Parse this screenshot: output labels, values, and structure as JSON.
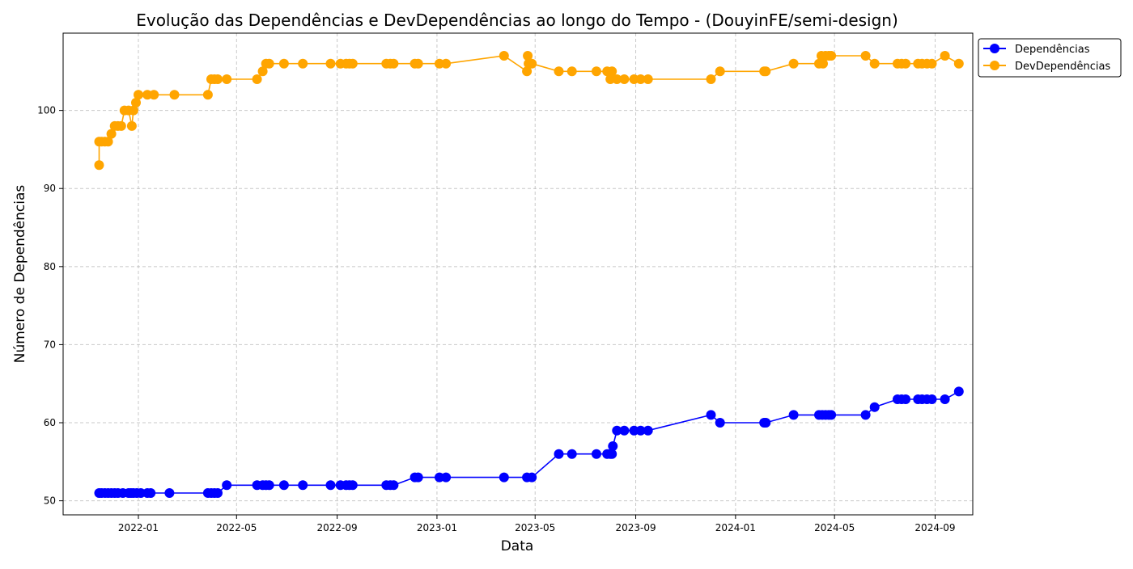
{
  "chart_data": {
    "type": "line",
    "title": "Evolução das Dependências e DevDependências ao longo do Tempo - (DouyinFE/semi-design)",
    "xlabel": "Data",
    "ylabel": "Número de Dependências",
    "x_ticks": [
      "2022-01",
      "2022-05",
      "2022-09",
      "2023-01",
      "2023-05",
      "2023-09",
      "2024-01",
      "2024-05",
      "2024-09"
    ],
    "y_ticks": [
      50,
      60,
      70,
      80,
      90,
      100
    ],
    "xlim": [
      "2021-10-01",
      "2024-10-17"
    ],
    "ylim": [
      48.2,
      109.9
    ],
    "grid": true,
    "legend_position": "outside-top-right",
    "series": [
      {
        "name": "Dependências",
        "color": "#0000ff",
        "points": [
          [
            "2021-11-14",
            51
          ],
          [
            "2021-11-17",
            51
          ],
          [
            "2021-11-21",
            51
          ],
          [
            "2021-11-25",
            51
          ],
          [
            "2021-11-29",
            51
          ],
          [
            "2021-12-03",
            51
          ],
          [
            "2021-12-07",
            51
          ],
          [
            "2021-12-13",
            51
          ],
          [
            "2021-12-20",
            51
          ],
          [
            "2021-12-23",
            51
          ],
          [
            "2021-12-26",
            51
          ],
          [
            "2021-12-30",
            51
          ],
          [
            "2022-01-04",
            51
          ],
          [
            "2022-01-12",
            51
          ],
          [
            "2022-01-16",
            51
          ],
          [
            "2022-02-08",
            51
          ],
          [
            "2022-03-27",
            51
          ],
          [
            "2022-03-31",
            51
          ],
          [
            "2022-04-04",
            51
          ],
          [
            "2022-04-08",
            51
          ],
          [
            "2022-04-19",
            52
          ],
          [
            "2022-05-26",
            52
          ],
          [
            "2022-06-02",
            52
          ],
          [
            "2022-06-06",
            52
          ],
          [
            "2022-06-10",
            52
          ],
          [
            "2022-06-28",
            52
          ],
          [
            "2022-07-21",
            52
          ],
          [
            "2022-08-24",
            52
          ],
          [
            "2022-09-05",
            52
          ],
          [
            "2022-09-12",
            52
          ],
          [
            "2022-09-16",
            52
          ],
          [
            "2022-09-20",
            52
          ],
          [
            "2022-10-31",
            52
          ],
          [
            "2022-11-05",
            52
          ],
          [
            "2022-11-09",
            52
          ],
          [
            "2022-12-05",
            53
          ],
          [
            "2022-12-09",
            53
          ],
          [
            "2023-01-04",
            53
          ],
          [
            "2023-01-12",
            53
          ],
          [
            "2023-03-24",
            53
          ],
          [
            "2023-04-21",
            53
          ],
          [
            "2023-04-27",
            53
          ],
          [
            "2023-05-30",
            56
          ],
          [
            "2023-06-15",
            56
          ],
          [
            "2023-07-15",
            56
          ],
          [
            "2023-07-28",
            56
          ],
          [
            "2023-08-01",
            56
          ],
          [
            "2023-08-03",
            56
          ],
          [
            "2023-08-04",
            57
          ],
          [
            "2023-08-09",
            59
          ],
          [
            "2023-08-18",
            59
          ],
          [
            "2023-08-30",
            59
          ],
          [
            "2023-09-07",
            59
          ],
          [
            "2023-09-16",
            59
          ],
          [
            "2023-12-02",
            61
          ],
          [
            "2023-12-13",
            60
          ],
          [
            "2024-02-05",
            60
          ],
          [
            "2024-02-07",
            60
          ],
          [
            "2024-03-12",
            61
          ],
          [
            "2024-04-12",
            61
          ],
          [
            "2024-04-16",
            61
          ],
          [
            "2024-04-20",
            61
          ],
          [
            "2024-04-24",
            61
          ],
          [
            "2024-04-27",
            61
          ],
          [
            "2024-06-08",
            61
          ],
          [
            "2024-06-19",
            62
          ],
          [
            "2024-07-17",
            63
          ],
          [
            "2024-07-22",
            63
          ],
          [
            "2024-07-27",
            63
          ],
          [
            "2024-08-11",
            63
          ],
          [
            "2024-08-16",
            63
          ],
          [
            "2024-08-22",
            63
          ],
          [
            "2024-08-28",
            63
          ],
          [
            "2024-09-13",
            63
          ],
          [
            "2024-09-30",
            64
          ]
        ]
      },
      {
        "name": "DevDependências",
        "color": "#ffa500",
        "points": [
          [
            "2021-11-14",
            93
          ],
          [
            "2021-11-14",
            96
          ],
          [
            "2021-11-17",
            96
          ],
          [
            "2021-11-21",
            96
          ],
          [
            "2021-11-25",
            96
          ],
          [
            "2021-11-29",
            97
          ],
          [
            "2021-12-03",
            98
          ],
          [
            "2021-12-07",
            98
          ],
          [
            "2021-12-11",
            98
          ],
          [
            "2021-12-15",
            100
          ],
          [
            "2021-12-20",
            100
          ],
          [
            "2021-12-24",
            98
          ],
          [
            "2021-12-26",
            100
          ],
          [
            "2021-12-29",
            101
          ],
          [
            "2022-01-01",
            102
          ],
          [
            "2022-01-12",
            102
          ],
          [
            "2022-01-20",
            102
          ],
          [
            "2022-02-14",
            102
          ],
          [
            "2022-03-27",
            102
          ],
          [
            "2022-03-31",
            104
          ],
          [
            "2022-04-04",
            104
          ],
          [
            "2022-04-08",
            104
          ],
          [
            "2022-04-19",
            104
          ],
          [
            "2022-05-26",
            104
          ],
          [
            "2022-06-02",
            105
          ],
          [
            "2022-06-06",
            106
          ],
          [
            "2022-06-10",
            106
          ],
          [
            "2022-06-28",
            106
          ],
          [
            "2022-07-21",
            106
          ],
          [
            "2022-08-24",
            106
          ],
          [
            "2022-09-05",
            106
          ],
          [
            "2022-09-12",
            106
          ],
          [
            "2022-09-16",
            106
          ],
          [
            "2022-09-20",
            106
          ],
          [
            "2022-10-31",
            106
          ],
          [
            "2022-11-05",
            106
          ],
          [
            "2022-11-09",
            106
          ],
          [
            "2022-12-05",
            106
          ],
          [
            "2022-12-09",
            106
          ],
          [
            "2023-01-04",
            106
          ],
          [
            "2023-01-12",
            106
          ],
          [
            "2023-03-24",
            107
          ],
          [
            "2023-04-21",
            105
          ],
          [
            "2023-04-22",
            107
          ],
          [
            "2023-04-23",
            106
          ],
          [
            "2023-04-27",
            106
          ],
          [
            "2023-05-30",
            105
          ],
          [
            "2023-06-15",
            105
          ],
          [
            "2023-07-15",
            105
          ],
          [
            "2023-07-28",
            105
          ],
          [
            "2023-08-01",
            104
          ],
          [
            "2023-08-03",
            105
          ],
          [
            "2023-08-09",
            104
          ],
          [
            "2023-08-18",
            104
          ],
          [
            "2023-08-30",
            104
          ],
          [
            "2023-09-07",
            104
          ],
          [
            "2023-09-16",
            104
          ],
          [
            "2023-12-02",
            104
          ],
          [
            "2023-12-13",
            105
          ],
          [
            "2024-02-05",
            105
          ],
          [
            "2024-02-07",
            105
          ],
          [
            "2024-03-12",
            106
          ],
          [
            "2024-04-12",
            106
          ],
          [
            "2024-04-15",
            107
          ],
          [
            "2024-04-17",
            106
          ],
          [
            "2024-04-20",
            107
          ],
          [
            "2024-04-24",
            107
          ],
          [
            "2024-04-27",
            107
          ],
          [
            "2024-06-08",
            107
          ],
          [
            "2024-06-19",
            106
          ],
          [
            "2024-07-17",
            106
          ],
          [
            "2024-07-22",
            106
          ],
          [
            "2024-07-27",
            106
          ],
          [
            "2024-08-11",
            106
          ],
          [
            "2024-08-16",
            106
          ],
          [
            "2024-08-22",
            106
          ],
          [
            "2024-08-28",
            106
          ],
          [
            "2024-09-13",
            107
          ],
          [
            "2024-09-30",
            106
          ]
        ]
      }
    ]
  }
}
